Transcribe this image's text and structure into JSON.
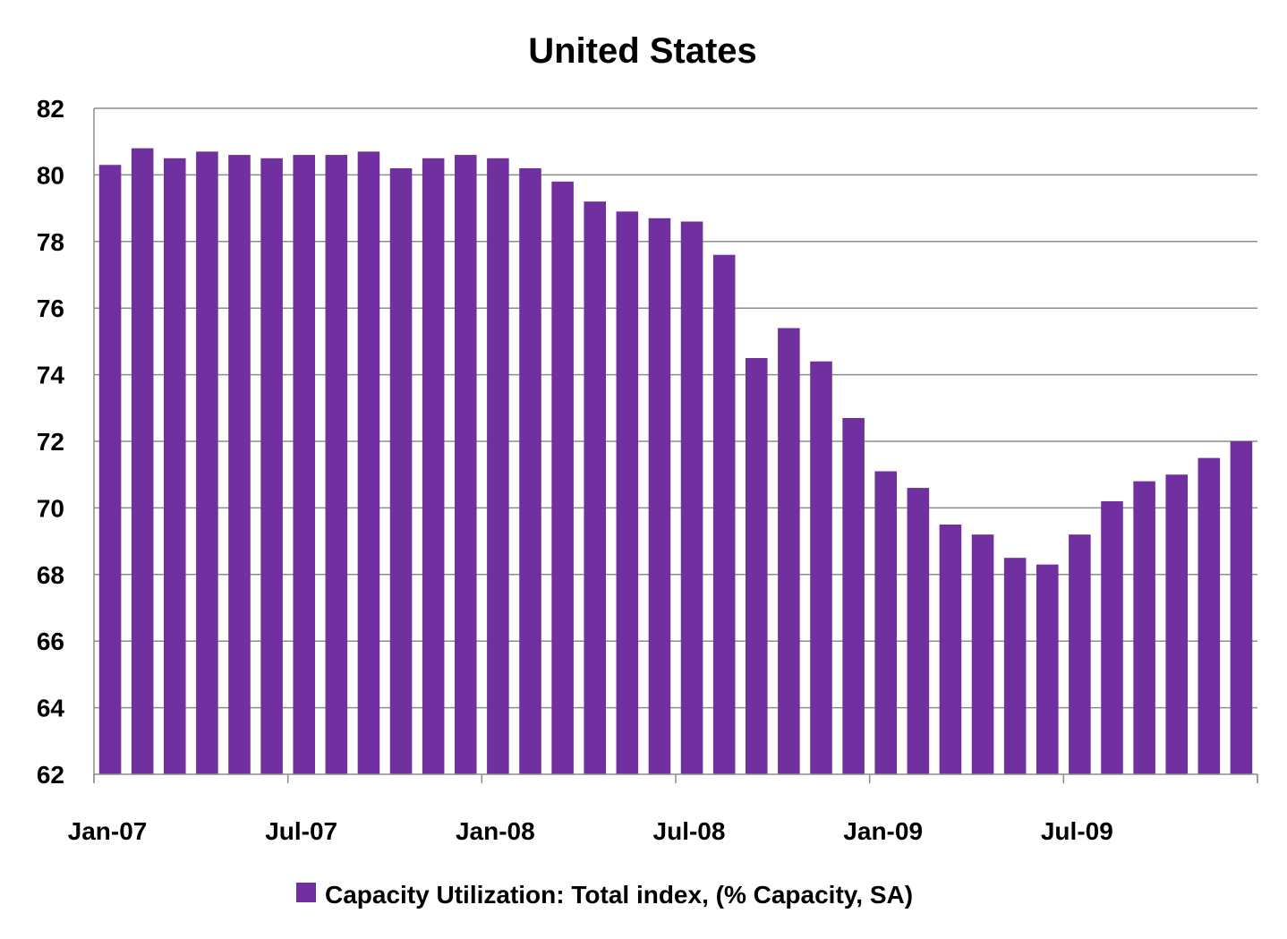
{
  "chart_data": {
    "type": "bar",
    "title": "United States",
    "xlabel": "",
    "ylabel": "",
    "ylim": [
      62,
      82
    ],
    "yticks": [
      62,
      64,
      66,
      68,
      70,
      72,
      74,
      76,
      78,
      80,
      82
    ],
    "x_tick_labels": [
      "Jan-07",
      "Jul-07",
      "Jan-08",
      "Jul-08",
      "Jan-09",
      "Jul-09"
    ],
    "categories": [
      "Jan-07",
      "Feb-07",
      "Mar-07",
      "Apr-07",
      "May-07",
      "Jun-07",
      "Jul-07",
      "Aug-07",
      "Sep-07",
      "Oct-07",
      "Nov-07",
      "Dec-07",
      "Jan-08",
      "Feb-08",
      "Mar-08",
      "Apr-08",
      "May-08",
      "Jun-08",
      "Jul-08",
      "Aug-08",
      "Sep-08",
      "Oct-08",
      "Nov-08",
      "Dec-08",
      "Jan-09",
      "Feb-09",
      "Mar-09",
      "Apr-09",
      "May-09",
      "Jun-09",
      "Jul-09",
      "Aug-09",
      "Sep-09",
      "Oct-09",
      "Nov-09",
      "Dec-09"
    ],
    "series": [
      {
        "name": "Capacity Utilization: Total index, (% Capacity, SA)",
        "color": "#7030a0",
        "values": [
          80.3,
          80.8,
          80.5,
          80.7,
          80.6,
          80.5,
          80.6,
          80.6,
          80.7,
          80.2,
          80.5,
          80.6,
          80.5,
          80.2,
          79.8,
          79.2,
          78.9,
          78.7,
          78.6,
          77.6,
          74.5,
          75.4,
          74.4,
          72.7,
          71.1,
          70.6,
          69.5,
          69.2,
          68.5,
          68.3,
          69.2,
          70.2,
          70.8,
          71.0,
          71.5,
          72.0
        ]
      }
    ],
    "grid": true,
    "legend": "bottom"
  }
}
